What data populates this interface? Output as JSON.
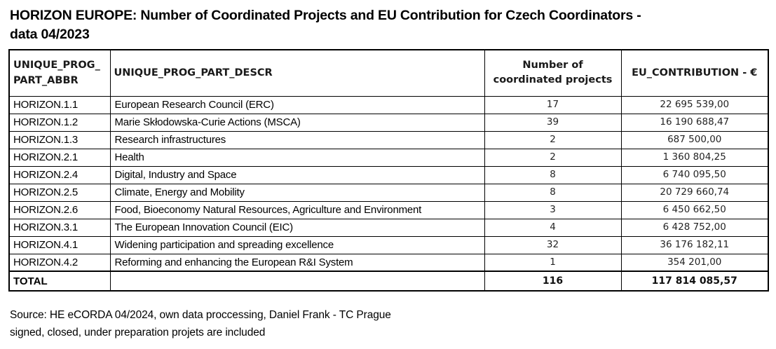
{
  "title": {
    "line1": "HORIZON EUROPE: Number of Coordinated Projects and EU Contribution for Czech Coordinators -",
    "line2": "data 04/2023",
    "full": "HORIZON EUROPE: Number of Coordinated Projects and EU Contribution for Czech Coordinators - data 04/2023"
  },
  "table": {
    "headers": {
      "abbr_line1": "UNIQUE_PROG_",
      "abbr_line2": "PART_ABBR",
      "descr": "UNIQUE_PROG_PART_DESCR",
      "count": "Number of coordinated projects",
      "contribution": "EU_CONTRIBUTION - €"
    },
    "rows": [
      {
        "abbr": "HORIZON.1.1",
        "descr": "European Research Council (ERC)",
        "count": "17",
        "contribution": "22 695 539,00"
      },
      {
        "abbr": "HORIZON.1.2",
        "descr": "Marie Skłodowska-Curie Actions (MSCA)",
        "count": "39",
        "contribution": "16 190 688,47"
      },
      {
        "abbr": "HORIZON.1.3",
        "descr": "Research infrastructures",
        "count": "2",
        "contribution": "687 500,00"
      },
      {
        "abbr": "HORIZON.2.1",
        "descr": "Health",
        "count": "2",
        "contribution": "1 360 804,25"
      },
      {
        "abbr": "HORIZON.2.4",
        "descr": "Digital, Industry and Space",
        "count": "8",
        "contribution": "6 740 095,50"
      },
      {
        "abbr": "HORIZON.2.5",
        "descr": "Climate, Energy and Mobility",
        "count": "8",
        "contribution": "20 729 660,74"
      },
      {
        "abbr": "HORIZON.2.6",
        "descr": "Food, Bioeconomy Natural Resources, Agriculture and Environment",
        "count": "3",
        "contribution": "6 450 662,50"
      },
      {
        "abbr": "HORIZON.3.1",
        "descr": "The European Innovation Council (EIC)",
        "count": "4",
        "contribution": "6 428 752,00"
      },
      {
        "abbr": "HORIZON.4.1",
        "descr": "Widening participation and spreading excellence",
        "count": "32",
        "contribution": "36 176 182,11"
      },
      {
        "abbr": "HORIZON.4.2",
        "descr": "Reforming and enhancing the European R&I System",
        "count": "1",
        "contribution": "354 201,00"
      }
    ],
    "total": {
      "label": "TOTAL",
      "descr": "",
      "count": "116",
      "contribution": "117 814 085,57"
    }
  },
  "footer": {
    "line1": "Source: HE eCORDA 04/2024, own data proccessing, Daniel Frank - TC Prague",
    "line2": "signed, closed, under preparation projets are included"
  },
  "colors": {
    "background": "#ffffff",
    "text": "#000000",
    "border": "#000000"
  },
  "chart_data": {
    "type": "table",
    "title": "HORIZON EUROPE: Number of Coordinated Projects and EU Contribution for Czech Coordinators - data 04/2023",
    "columns": [
      "UNIQUE_PROG_PART_ABBR",
      "UNIQUE_PROG_PART_DESCR",
      "Number of coordinated projects",
      "EU_CONTRIBUTION - €"
    ],
    "categories": [
      "HORIZON.1.1",
      "HORIZON.1.2",
      "HORIZON.1.3",
      "HORIZON.2.1",
      "HORIZON.2.4",
      "HORIZON.2.5",
      "HORIZON.2.6",
      "HORIZON.3.1",
      "HORIZON.4.1",
      "HORIZON.4.2"
    ],
    "descriptions": [
      "European Research Council (ERC)",
      "Marie Skłodowska-Curie Actions (MSCA)",
      "Research infrastructures",
      "Health",
      "Digital, Industry and Space",
      "Climate, Energy and Mobility",
      "Food, Bioeconomy Natural Resources, Agriculture and Environment",
      "The European Innovation Council (EIC)",
      "Widening participation and spreading excellence",
      "Reforming and enhancing the European R&I System"
    ],
    "series": [
      {
        "name": "Number of coordinated projects",
        "values": [
          17,
          39,
          2,
          2,
          8,
          8,
          3,
          4,
          32,
          1
        ]
      },
      {
        "name": "EU_CONTRIBUTION - €",
        "values": [
          22695539.0,
          16190688.47,
          687500.0,
          1360804.25,
          6740095.5,
          20729660.74,
          6450662.5,
          6428752.0,
          36176182.11,
          354201.0
        ]
      }
    ],
    "totals": {
      "label": "TOTAL",
      "count": 116,
      "contribution": 117814085.57
    },
    "source_note": "Source: HE eCORDA 04/2024, own data proccessing, Daniel Frank - TC Prague — signed, closed, under preparation projets are included"
  }
}
